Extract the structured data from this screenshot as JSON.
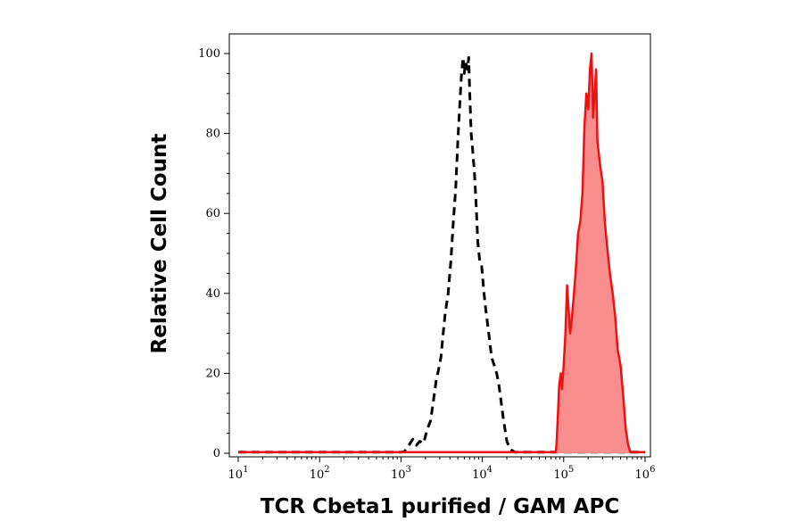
{
  "chart_data": {
    "type": "histogram",
    "xlabel": "TCR Cbeta1 purified / GAM APC",
    "ylabel": "Relative Cell Count",
    "x_scale": "log",
    "xlim": [
      10,
      1000000
    ],
    "ylim": [
      0,
      100
    ],
    "x_ticks": [
      {
        "base": "10",
        "exp": "1"
      },
      {
        "base": "10",
        "exp": "2"
      },
      {
        "base": "10",
        "exp": "3"
      },
      {
        "base": "10",
        "exp": "4"
      },
      {
        "base": "10",
        "exp": "5"
      },
      {
        "base": "10",
        "exp": "6"
      }
    ],
    "y_ticks": [
      "0",
      "20",
      "40",
      "60",
      "80",
      "100"
    ],
    "grid": false,
    "series": [
      {
        "style": "dashed",
        "stroke": "#000000",
        "fill": "none",
        "points": [
          [
            10,
            0.3
          ],
          [
            1000,
            0.3
          ],
          [
            1100,
            0.4
          ],
          [
            1250,
            2
          ],
          [
            1400,
            3.5
          ],
          [
            1550,
            2
          ],
          [
            1700,
            3
          ],
          [
            1900,
            2.5
          ],
          [
            2100,
            6
          ],
          [
            2300,
            8
          ],
          [
            2500,
            13
          ],
          [
            2700,
            18
          ],
          [
            2900,
            21
          ],
          [
            3100,
            24
          ],
          [
            3300,
            30
          ],
          [
            3500,
            35
          ],
          [
            3800,
            40
          ],
          [
            4100,
            48
          ],
          [
            4400,
            58
          ],
          [
            4700,
            66
          ],
          [
            5000,
            78
          ],
          [
            5300,
            88
          ],
          [
            5550,
            95
          ],
          [
            5800,
            99
          ],
          [
            6000,
            95
          ],
          [
            6200,
            98
          ],
          [
            6400,
            97
          ],
          [
            6600,
            96
          ],
          [
            6800,
            99
          ],
          [
            7000,
            90
          ],
          [
            7300,
            80
          ],
          [
            7600,
            76
          ],
          [
            8000,
            70
          ],
          [
            8400,
            62
          ],
          [
            8800,
            53
          ],
          [
            9300,
            48
          ],
          [
            9800,
            47
          ],
          [
            10500,
            40
          ],
          [
            11000,
            36
          ],
          [
            12000,
            30
          ],
          [
            13000,
            24
          ],
          [
            14000,
            22
          ],
          [
            15000,
            20
          ],
          [
            16000,
            17
          ],
          [
            17000,
            13
          ],
          [
            18000,
            9
          ],
          [
            19000,
            6
          ],
          [
            20000,
            3
          ],
          [
            22000,
            1
          ],
          [
            25000,
            0.3
          ],
          [
            1000000,
            0.3
          ]
        ]
      },
      {
        "style": "solid",
        "stroke": "#ee1111",
        "fill": "#f88d8d",
        "points": [
          [
            10,
            0.3
          ],
          [
            80000,
            0.3
          ],
          [
            82000,
            3
          ],
          [
            85000,
            10
          ],
          [
            88000,
            17
          ],
          [
            92000,
            20
          ],
          [
            95000,
            16
          ],
          [
            100000,
            22
          ],
          [
            105000,
            30
          ],
          [
            110000,
            42
          ],
          [
            115000,
            36
          ],
          [
            120000,
            30
          ],
          [
            125000,
            33
          ],
          [
            130000,
            37
          ],
          [
            140000,
            45
          ],
          [
            150000,
            55
          ],
          [
            160000,
            58
          ],
          [
            170000,
            65
          ],
          [
            180000,
            82
          ],
          [
            190000,
            90
          ],
          [
            200000,
            86
          ],
          [
            210000,
            96
          ],
          [
            220000,
            100
          ],
          [
            230000,
            84
          ],
          [
            240000,
            90
          ],
          [
            250000,
            96
          ],
          [
            260000,
            78
          ],
          [
            280000,
            72
          ],
          [
            300000,
            68
          ],
          [
            320000,
            58
          ],
          [
            340000,
            52
          ],
          [
            370000,
            45
          ],
          [
            400000,
            40
          ],
          [
            430000,
            34
          ],
          [
            460000,
            26
          ],
          [
            500000,
            22
          ],
          [
            540000,
            14
          ],
          [
            580000,
            6
          ],
          [
            620000,
            2
          ],
          [
            660000,
            0.3
          ],
          [
            1000000,
            0.3
          ]
        ]
      }
    ]
  }
}
